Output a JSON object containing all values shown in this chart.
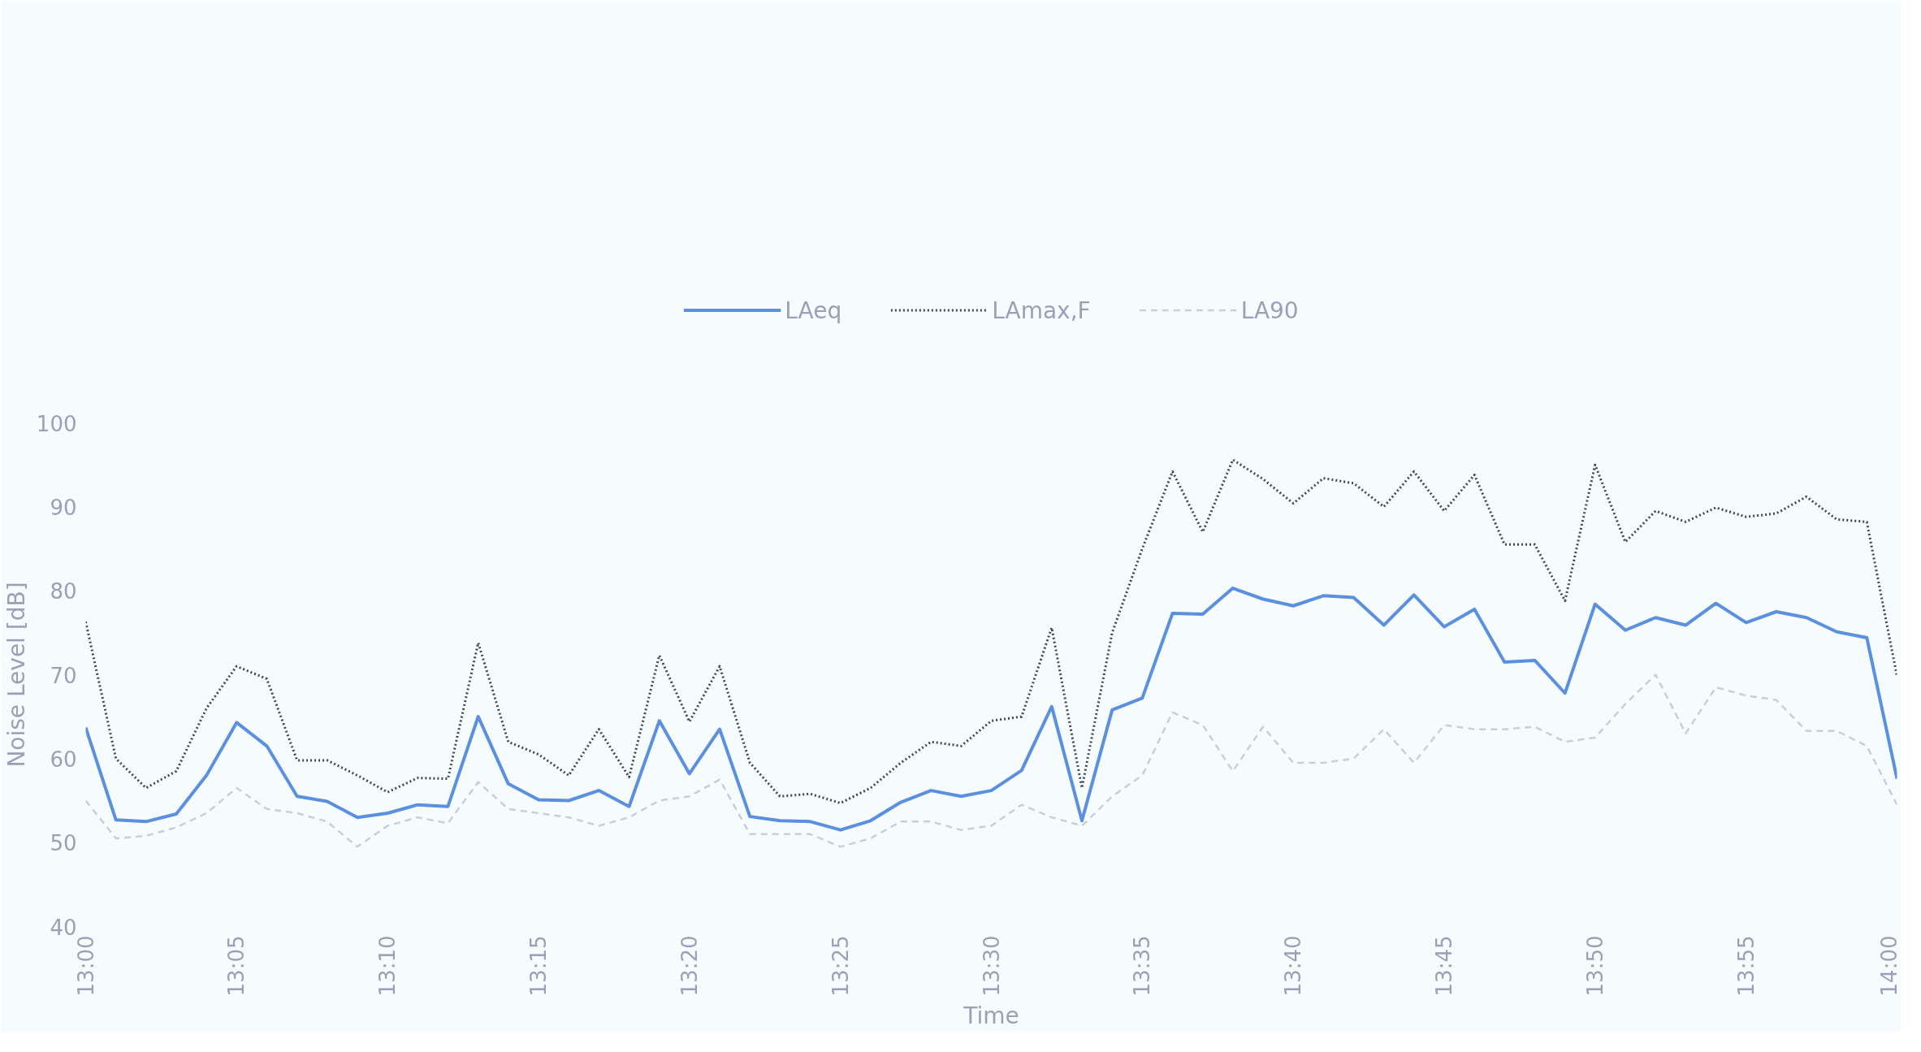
{
  "chart_data": {
    "type": "line",
    "xlabel": "Time",
    "ylabel": "Noise Level [dB]",
    "x": [
      13,
      13.0167,
      13.0333,
      13.05,
      13.0667,
      13.0833,
      13.1,
      13.1167,
      13.1333,
      13.15,
      13.1667,
      13.1833,
      13.2,
      13.2167,
      13.2333,
      13.25,
      13.2667,
      13.2833,
      13.3,
      13.3167,
      13.3333,
      13.35,
      13.3667,
      13.3833,
      13.4,
      13.4167,
      13.4333,
      13.45,
      13.4667,
      13.4833,
      13.5,
      13.5167,
      13.5333,
      13.55,
      13.5667,
      13.5833,
      13.6,
      13.6167,
      13.6333,
      13.65,
      13.6667,
      13.6833,
      13.7,
      13.7167,
      13.7333,
      13.75,
      13.7667,
      13.7833,
      13.8,
      13.8167,
      13.8333,
      13.85,
      13.8667,
      13.8833,
      13.9,
      13.9167,
      13.9333,
      13.95,
      13.9667,
      13.9833,
      14
    ],
    "series": [
      {
        "name": "LAeq",
        "color": "#5b8fe0",
        "line_style": "solid",
        "values": [
          63.7,
          52.7,
          52.5,
          53.4,
          58,
          64.3,
          61.5,
          55.5,
          54.9,
          53,
          53.5,
          54.5,
          54.3,
          65,
          57,
          55.1,
          55,
          56.2,
          54.3,
          64.5,
          58.2,
          63.5,
          53.1,
          52.6,
          52.5,
          51.5,
          52.6,
          54.8,
          56.2,
          55.5,
          56.2,
          58.6,
          66.2,
          52.6,
          65.8,
          67.2,
          77.3,
          77.2,
          80.3,
          79,
          78.2,
          79.4,
          79.2,
          75.9,
          79.5,
          75.7,
          77.8,
          71.5,
          71.7,
          67.8,
          78.4,
          75.3,
          76.8,
          75.9,
          78.5,
          76.2,
          77.5,
          76.8,
          75.1,
          74.4,
          57.6
        ]
      },
      {
        "name": "LAmax,F",
        "color": "#444650",
        "line_style": "dotted",
        "values": [
          76.3,
          60,
          56.5,
          58.5,
          66,
          71,
          69.5,
          59.8,
          59.8,
          58,
          56,
          57.7,
          57.6,
          73.8,
          62,
          60.5,
          58,
          63.5,
          57.8,
          72.3,
          64.4,
          71,
          59.5,
          55.5,
          55.8,
          54.7,
          56.5,
          59.5,
          62,
          61.5,
          64.5,
          65,
          75.6,
          56.5,
          75,
          85,
          94.2,
          87,
          95.6,
          93.3,
          90.4,
          93.4,
          92.8,
          90,
          94.2,
          89.5,
          93.8,
          85.5,
          85.5,
          78.8,
          95,
          85.8,
          89.5,
          88.2,
          89.9,
          88.8,
          89.2,
          91.2,
          88.5,
          88.2,
          69.8
        ]
      },
      {
        "name": "LA90",
        "color": "#c9cede",
        "line_style": "dashed",
        "values": [
          55,
          50.5,
          50.8,
          51.8,
          53.5,
          56.5,
          54,
          53.5,
          52.5,
          49.5,
          52,
          53,
          52.3,
          57.2,
          54,
          53.5,
          53,
          52,
          53,
          55,
          55.5,
          57.5,
          51,
          51,
          51,
          49.5,
          50.5,
          52.5,
          52.5,
          51.5,
          52,
          54.5,
          53,
          52,
          55.5,
          58,
          65.5,
          64,
          58.5,
          63.8,
          59.5,
          59.5,
          60,
          63.5,
          59.5,
          64,
          63.5,
          63.5,
          63.8,
          62,
          62.5,
          66.5,
          70,
          63,
          68.5,
          67.5,
          67,
          63.3,
          63.3,
          61.5,
          54.5
        ]
      }
    ],
    "xlim": [
      13,
      14
    ],
    "ylim": [
      40,
      100
    ],
    "xticks": [
      {
        "value": 13,
        "label": "13:00"
      },
      {
        "value": 13.0833,
        "label": "13:05"
      },
      {
        "value": 13.1667,
        "label": "13:10"
      },
      {
        "value": 13.25,
        "label": "13:15"
      },
      {
        "value": 13.3333,
        "label": "13:20"
      },
      {
        "value": 13.4167,
        "label": "13:25"
      },
      {
        "value": 13.5,
        "label": "13:30"
      },
      {
        "value": 13.5833,
        "label": "13:35"
      },
      {
        "value": 13.6667,
        "label": "13:40"
      },
      {
        "value": 13.75,
        "label": "13:45"
      },
      {
        "value": 13.8333,
        "label": "13:50"
      },
      {
        "value": 13.9167,
        "label": "13:55"
      },
      {
        "value": 14,
        "label": "14:00"
      }
    ],
    "yticks": [
      40,
      50,
      60,
      70,
      80,
      90,
      100
    ],
    "legend": "top",
    "grid": false,
    "marker": "none"
  }
}
